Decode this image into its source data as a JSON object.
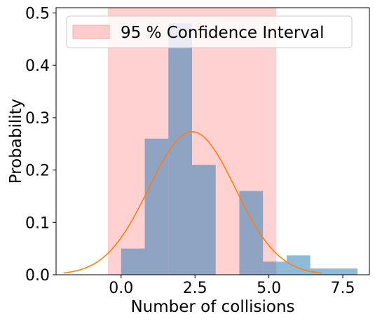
{
  "chart_data": {
    "type": "histogram",
    "title": "",
    "xlabel": "Number of collisions",
    "ylabel": "Probability",
    "xlim": [
      -2.2,
      8.4
    ],
    "ylim": [
      0,
      0.51
    ],
    "xticks": [
      0.0,
      2.5,
      5.0,
      7.5
    ],
    "xtick_labels": [
      "0.0",
      "2.5",
      "5.0",
      "7.5"
    ],
    "yticks": [
      0.0,
      0.1,
      0.2,
      0.3,
      0.4,
      0.5
    ],
    "ytick_labels": [
      "0.0",
      "0.1",
      "0.2",
      "0.3",
      "0.4",
      "0.5"
    ],
    "grid": false,
    "legend": {
      "placement": "top-left",
      "entries": [
        {
          "label": "95 % Confidence Interval",
          "color": "#ffcccc"
        }
      ]
    },
    "histogram": {
      "color": "#1f77b4",
      "opacity": 0.5,
      "bins": [
        {
          "x0": 0.0,
          "x1": 0.8,
          "value": 0.05
        },
        {
          "x0": 0.8,
          "x1": 1.6,
          "value": 0.26
        },
        {
          "x0": 1.6,
          "x1": 2.4,
          "value": 0.48
        },
        {
          "x0": 2.4,
          "x1": 3.2,
          "value": 0.21
        },
        {
          "x0": 3.2,
          "x1": 4.0,
          "value": 0.0
        },
        {
          "x0": 4.0,
          "x1": 4.8,
          "value": 0.16
        },
        {
          "x0": 4.8,
          "x1": 5.6,
          "value": 0.025
        },
        {
          "x0": 5.6,
          "x1": 6.4,
          "value": 0.037
        },
        {
          "x0": 6.4,
          "x1": 7.2,
          "value": 0.012
        },
        {
          "x0": 7.2,
          "x1": 8.0,
          "value": 0.012
        }
      ]
    },
    "confidence_interval": {
      "x0": -0.45,
      "x1": 5.25,
      "color": "#ffcccc",
      "opacity": 0.9
    },
    "normal_curve": {
      "mean": 2.4,
      "sd": 1.46,
      "x_start": -1.95,
      "x_end": 6.8,
      "color": "#ff7f0e"
    }
  }
}
